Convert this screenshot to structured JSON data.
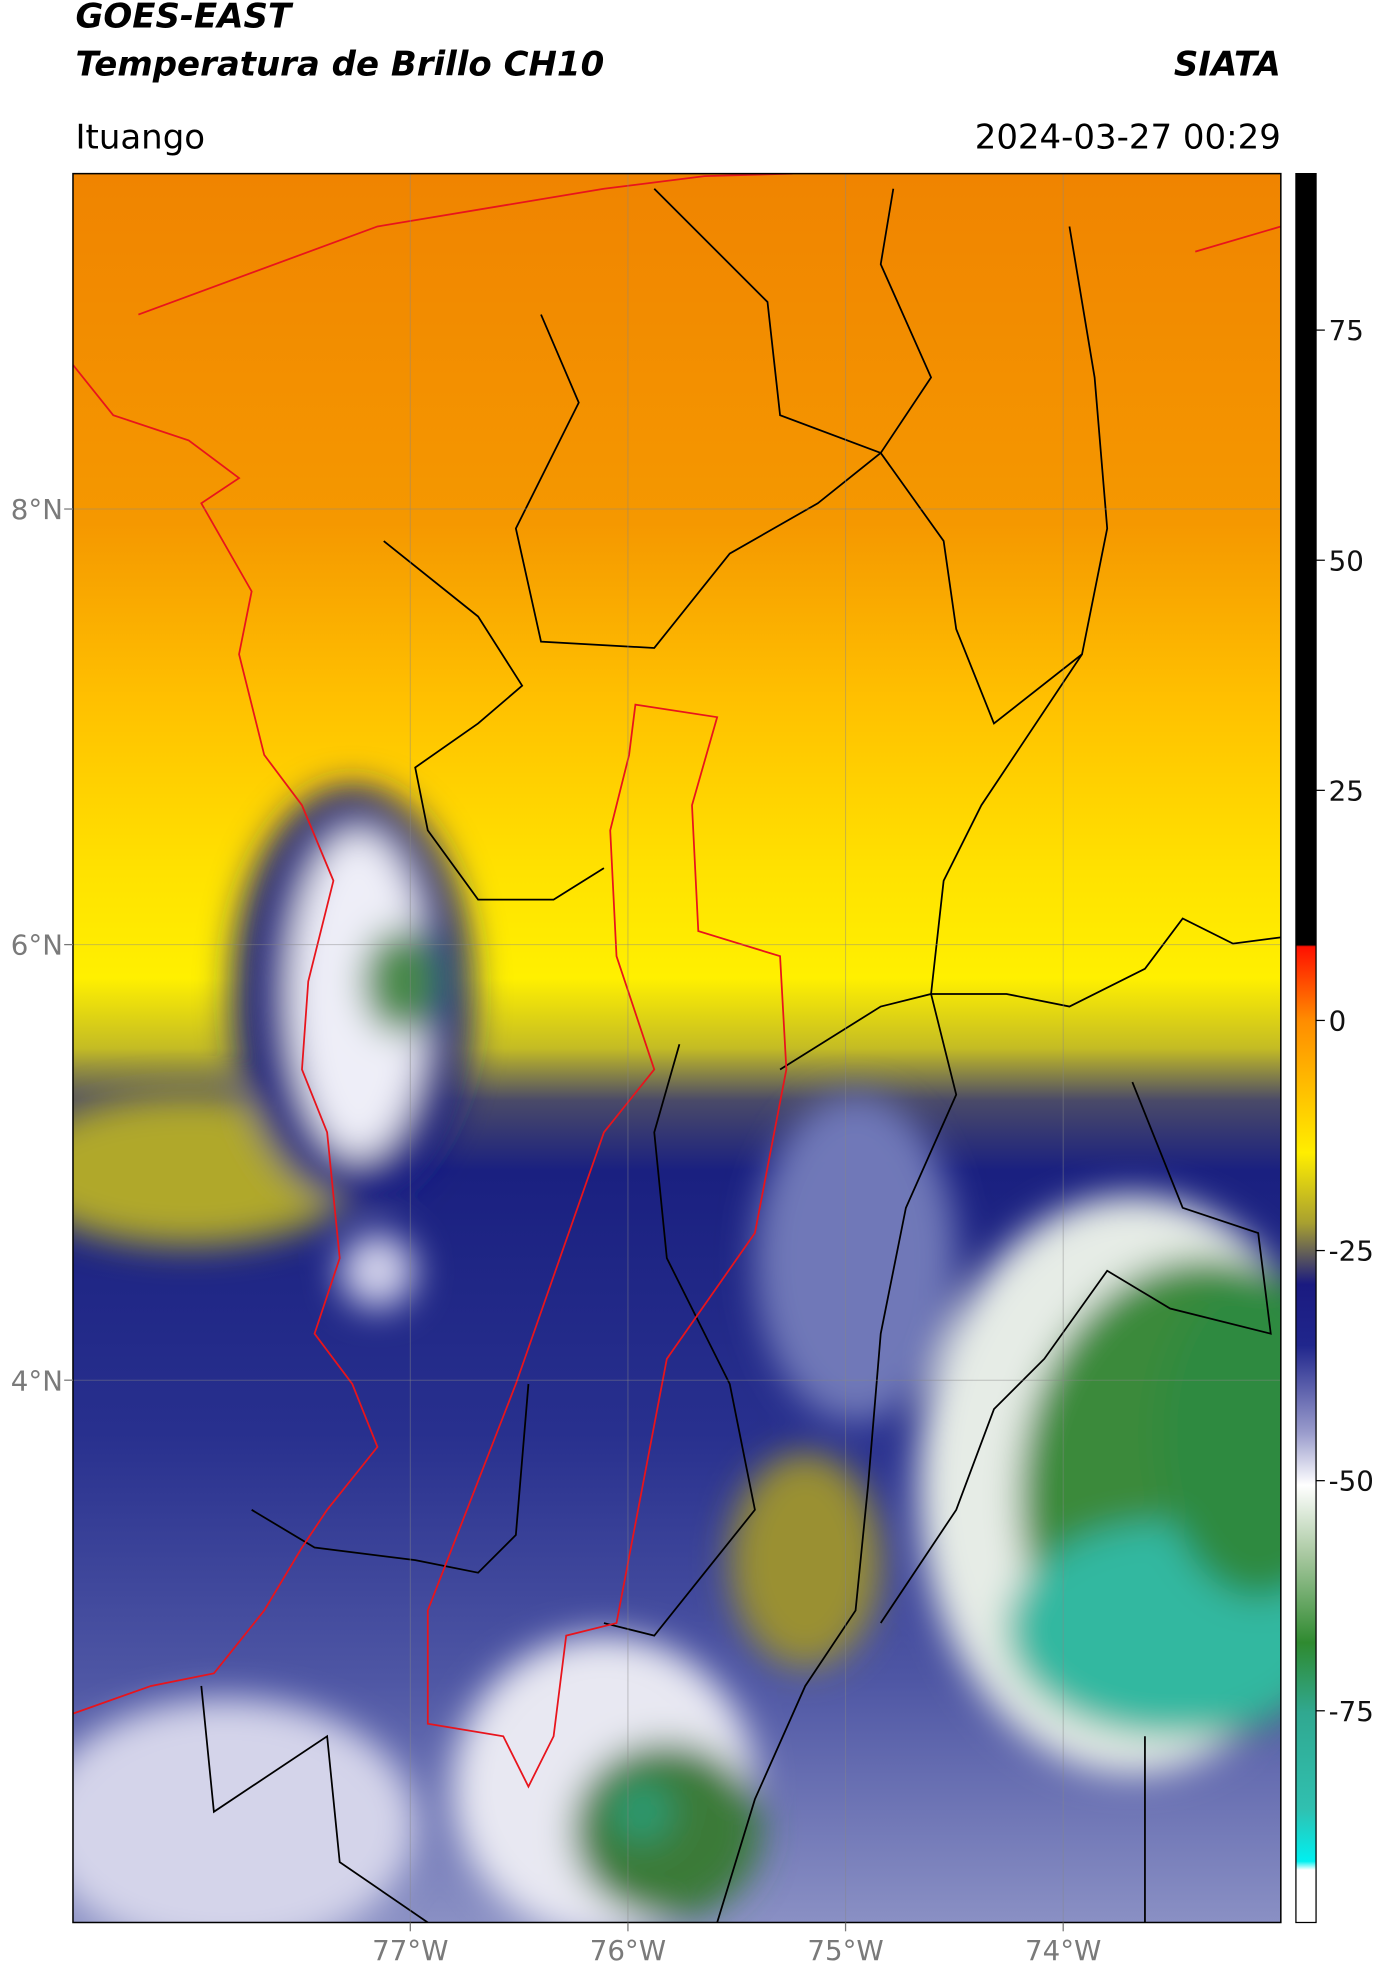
{
  "header": {
    "title": "GOES-EAST",
    "subtitle": "Temperatura de Brillo CH10",
    "source": "SIATA",
    "location": "Ituango",
    "datetime": "2024-03-27 00:29"
  },
  "map": {
    "xlim": [
      -78.55,
      -73.0
    ],
    "ylim": [
      1.51,
      9.54
    ],
    "xticks": [
      {
        "value": -77,
        "label": "77°W"
      },
      {
        "value": -76,
        "label": "76°W"
      },
      {
        "value": -75,
        "label": "75°W"
      },
      {
        "value": -74,
        "label": "74°W"
      }
    ],
    "yticks": [
      {
        "value": 8,
        "label": "8°N"
      },
      {
        "value": 6,
        "label": "6°N"
      },
      {
        "value": 4,
        "label": "4°N"
      }
    ],
    "grid": true
  },
  "colorbar": {
    "lim": [
      -98,
      92
    ],
    "ticks": [
      75,
      50,
      25,
      0,
      -25,
      -50,
      -75
    ]
  }
}
